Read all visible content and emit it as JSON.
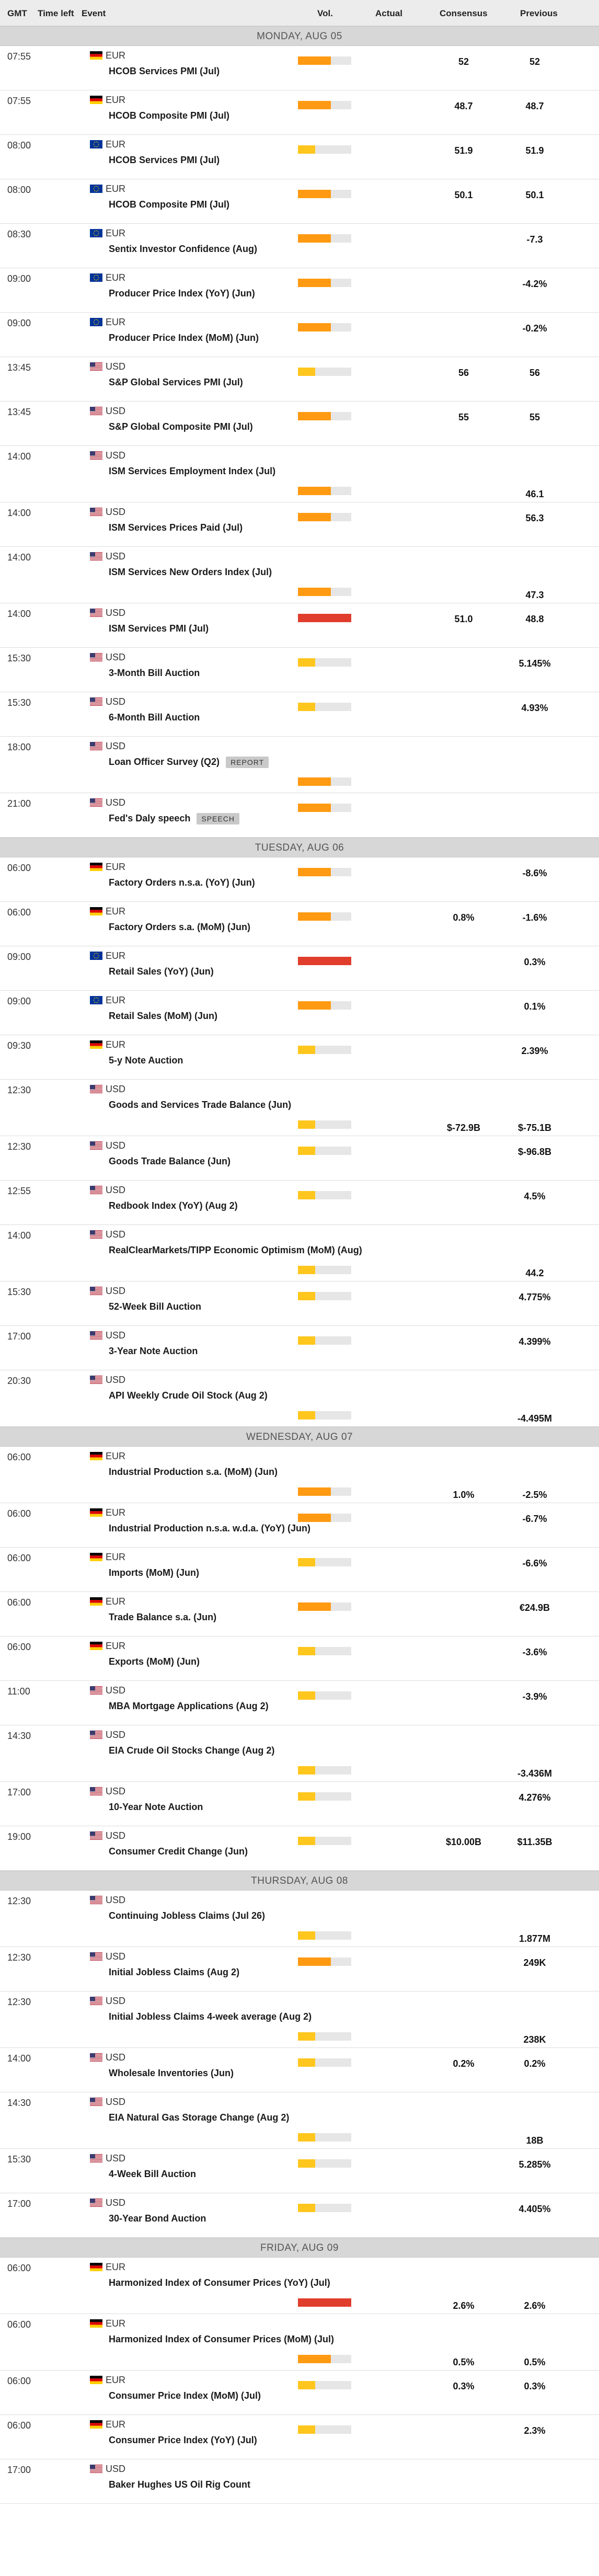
{
  "header": {
    "gmt": "GMT",
    "time_left": "Time left",
    "event": "Event",
    "vol": "Vol.",
    "actual": "Actual",
    "consensus": "Consensus",
    "previous": "Previous"
  },
  "colors": {
    "low": "#ffc61e",
    "medium": "#ff9a12",
    "high": "#e03d2c",
    "track": "#e6e6e6"
  },
  "days": [
    {
      "label": "MONDAY, AUG 05",
      "events": [
        {
          "time": "07:55",
          "flag": "de",
          "currency": "EUR",
          "name": "HCOB Services PMI (Jul)",
          "vol": "medium",
          "consensus": "52",
          "previous": "52"
        },
        {
          "time": "07:55",
          "flag": "de",
          "currency": "EUR",
          "name": "HCOB Composite PMI (Jul)",
          "vol": "medium",
          "consensus": "48.7",
          "previous": "48.7"
        },
        {
          "time": "08:00",
          "flag": "eu",
          "currency": "EUR",
          "name": "HCOB Services PMI (Jul)",
          "vol": "low",
          "consensus": "51.9",
          "previous": "51.9"
        },
        {
          "time": "08:00",
          "flag": "eu",
          "currency": "EUR",
          "name": "HCOB Composite PMI (Jul)",
          "vol": "medium",
          "consensus": "50.1",
          "previous": "50.1"
        },
        {
          "time": "08:30",
          "flag": "eu",
          "currency": "EUR",
          "name": "Sentix Investor Confidence (Aug)",
          "vol": "medium",
          "consensus": "",
          "previous": "-7.3"
        },
        {
          "time": "09:00",
          "flag": "eu",
          "currency": "EUR",
          "name": "Producer Price Index (YoY) (Jun)",
          "vol": "medium",
          "consensus": "",
          "previous": "-4.2%"
        },
        {
          "time": "09:00",
          "flag": "eu",
          "currency": "EUR",
          "name": "Producer Price Index (MoM) (Jun)",
          "vol": "medium",
          "consensus": "",
          "previous": "-0.2%"
        },
        {
          "time": "13:45",
          "flag": "us",
          "currency": "USD",
          "name": "S&P Global Services PMI (Jul)",
          "vol": "low",
          "consensus": "56",
          "previous": "56"
        },
        {
          "time": "13:45",
          "flag": "us",
          "currency": "USD",
          "name": "S&P Global Composite PMI (Jul)",
          "vol": "medium",
          "consensus": "55",
          "previous": "55"
        },
        {
          "time": "14:00",
          "flag": "us",
          "currency": "USD",
          "name": "ISM Services Employment Index (Jul)",
          "vol": "medium",
          "consensus": "",
          "previous": "46.1",
          "tall": true
        },
        {
          "time": "14:00",
          "flag": "us",
          "currency": "USD",
          "name": "ISM Services Prices Paid (Jul)",
          "vol": "medium",
          "consensus": "",
          "previous": "56.3"
        },
        {
          "time": "14:00",
          "flag": "us",
          "currency": "USD",
          "name": "ISM Services New Orders Index (Jul)",
          "vol": "medium",
          "consensus": "",
          "previous": "47.3",
          "tall": true
        },
        {
          "time": "14:00",
          "flag": "us",
          "currency": "USD",
          "name": "ISM Services PMI (Jul)",
          "vol": "high",
          "consensus": "51.0",
          "previous": "48.8"
        },
        {
          "time": "15:30",
          "flag": "us",
          "currency": "USD",
          "name": "3-Month Bill Auction",
          "vol": "low",
          "consensus": "",
          "previous": "5.145%"
        },
        {
          "time": "15:30",
          "flag": "us",
          "currency": "USD",
          "name": "6-Month Bill Auction",
          "vol": "low",
          "consensus": "",
          "previous": "4.93%"
        },
        {
          "time": "18:00",
          "flag": "us",
          "currency": "USD",
          "name": "Loan Officer Survey (Q2)",
          "tag": "REPORT",
          "vol": "medium",
          "consensus": "",
          "previous": "",
          "tall": true
        },
        {
          "time": "21:00",
          "flag": "us",
          "currency": "USD",
          "name": "Fed's Daly speech",
          "tag": "SPEECH",
          "vol": "medium",
          "consensus": "",
          "previous": ""
        }
      ]
    },
    {
      "label": "TUESDAY, AUG 06",
      "events": [
        {
          "time": "06:00",
          "flag": "de",
          "currency": "EUR",
          "name": "Factory Orders n.s.a. (YoY) (Jun)",
          "vol": "medium",
          "consensus": "",
          "previous": "-8.6%"
        },
        {
          "time": "06:00",
          "flag": "de",
          "currency": "EUR",
          "name": "Factory Orders s.a. (MoM) (Jun)",
          "vol": "medium",
          "consensus": "0.8%",
          "previous": "-1.6%"
        },
        {
          "time": "09:00",
          "flag": "eu",
          "currency": "EUR",
          "name": "Retail Sales (YoY) (Jun)",
          "vol": "high",
          "consensus": "",
          "previous": "0.3%"
        },
        {
          "time": "09:00",
          "flag": "eu",
          "currency": "EUR",
          "name": "Retail Sales (MoM) (Jun)",
          "vol": "medium",
          "consensus": "",
          "previous": "0.1%"
        },
        {
          "time": "09:30",
          "flag": "de",
          "currency": "EUR",
          "name": "5-y Note Auction",
          "vol": "low",
          "consensus": "",
          "previous": "2.39%"
        },
        {
          "time": "12:30",
          "flag": "us",
          "currency": "USD",
          "name": "Goods and Services Trade Balance (Jun)",
          "vol": "low",
          "consensus": "$-72.9B",
          "previous": "$-75.1B",
          "tall": true
        },
        {
          "time": "12:30",
          "flag": "us",
          "currency": "USD",
          "name": "Goods Trade Balance (Jun)",
          "vol": "low",
          "consensus": "",
          "previous": "$-96.8B"
        },
        {
          "time": "12:55",
          "flag": "us",
          "currency": "USD",
          "name": "Redbook Index (YoY) (Aug 2)",
          "vol": "low",
          "consensus": "",
          "previous": "4.5%"
        },
        {
          "time": "14:00",
          "flag": "us",
          "currency": "USD",
          "name": "RealClearMarkets/TIPP Economic Optimism (MoM) (Aug)",
          "vol": "low",
          "consensus": "",
          "previous": "44.2",
          "tall": true
        },
        {
          "time": "15:30",
          "flag": "us",
          "currency": "USD",
          "name": "52-Week Bill Auction",
          "vol": "low",
          "consensus": "",
          "previous": "4.775%"
        },
        {
          "time": "17:00",
          "flag": "us",
          "currency": "USD",
          "name": "3-Year Note Auction",
          "vol": "low",
          "consensus": "",
          "previous": "4.399%"
        },
        {
          "time": "20:30",
          "flag": "us",
          "currency": "USD",
          "name": "API Weekly Crude Oil Stock (Aug 2)",
          "vol": "low",
          "consensus": "",
          "previous": "-4.495M",
          "tall": true
        }
      ]
    },
    {
      "label": "WEDNESDAY, AUG 07",
      "events": [
        {
          "time": "06:00",
          "flag": "de",
          "currency": "EUR",
          "name": "Industrial Production s.a. (MoM) (Jun)",
          "vol": "medium",
          "consensus": "1.0%",
          "previous": "-2.5%",
          "tall": true
        },
        {
          "time": "06:00",
          "flag": "de",
          "currency": "EUR",
          "name": "Industrial Production n.s.a. w.d.a. (YoY) (Jun)",
          "vol": "medium",
          "consensus": "",
          "previous": "-6.7%"
        },
        {
          "time": "06:00",
          "flag": "de",
          "currency": "EUR",
          "name": "Imports (MoM) (Jun)",
          "vol": "low",
          "consensus": "",
          "previous": "-6.6%"
        },
        {
          "time": "06:00",
          "flag": "de",
          "currency": "EUR",
          "name": "Trade Balance s.a. (Jun)",
          "vol": "medium",
          "consensus": "",
          "previous": "€24.9B"
        },
        {
          "time": "06:00",
          "flag": "de",
          "currency": "EUR",
          "name": "Exports (MoM) (Jun)",
          "vol": "low",
          "consensus": "",
          "previous": "-3.6%"
        },
        {
          "time": "11:00",
          "flag": "us",
          "currency": "USD",
          "name": "MBA Mortgage Applications (Aug 2)",
          "vol": "low",
          "consensus": "",
          "previous": "-3.9%"
        },
        {
          "time": "14:30",
          "flag": "us",
          "currency": "USD",
          "name": "EIA Crude Oil Stocks Change (Aug 2)",
          "vol": "low",
          "consensus": "",
          "previous": "-3.436M",
          "tall": true
        },
        {
          "time": "17:00",
          "flag": "us",
          "currency": "USD",
          "name": "10-Year Note Auction",
          "vol": "low",
          "consensus": "",
          "previous": "4.276%"
        },
        {
          "time": "19:00",
          "flag": "us",
          "currency": "USD",
          "name": "Consumer Credit Change (Jun)",
          "vol": "low",
          "consensus": "$10.00B",
          "previous": "$11.35B"
        }
      ]
    },
    {
      "label": "THURSDAY, AUG 08",
      "events": [
        {
          "time": "12:30",
          "flag": "us",
          "currency": "USD",
          "name": "Continuing Jobless Claims (Jul 26)",
          "vol": "low",
          "consensus": "",
          "previous": "1.877M",
          "tall": true
        },
        {
          "time": "12:30",
          "flag": "us",
          "currency": "USD",
          "name": "Initial Jobless Claims (Aug 2)",
          "vol": "medium",
          "consensus": "",
          "previous": "249K"
        },
        {
          "time": "12:30",
          "flag": "us",
          "currency": "USD",
          "name": "Initial Jobless Claims 4-week average (Aug 2)",
          "vol": "low",
          "consensus": "",
          "previous": "238K",
          "tall": true
        },
        {
          "time": "14:00",
          "flag": "us",
          "currency": "USD",
          "name": "Wholesale Inventories (Jun)",
          "vol": "low",
          "consensus": "0.2%",
          "previous": "0.2%"
        },
        {
          "time": "14:30",
          "flag": "us",
          "currency": "USD",
          "name": "EIA Natural Gas Storage Change (Aug 2)",
          "vol": "low",
          "consensus": "",
          "previous": "18B",
          "tall": true
        },
        {
          "time": "15:30",
          "flag": "us",
          "currency": "USD",
          "name": "4-Week Bill Auction",
          "vol": "low",
          "consensus": "",
          "previous": "5.285%"
        },
        {
          "time": "17:00",
          "flag": "us",
          "currency": "USD",
          "name": "30-Year Bond Auction",
          "vol": "low",
          "consensus": "",
          "previous": "4.405%"
        }
      ]
    },
    {
      "label": "FRIDAY, AUG 09",
      "events": [
        {
          "time": "06:00",
          "flag": "de",
          "currency": "EUR",
          "name": "Harmonized Index of Consumer Prices (YoY) (Jul)",
          "vol": "high",
          "consensus": "2.6%",
          "previous": "2.6%",
          "tall": true
        },
        {
          "time": "06:00",
          "flag": "de",
          "currency": "EUR",
          "name": "Harmonized Index of Consumer Prices (MoM) (Jul)",
          "vol": "medium",
          "consensus": "0.5%",
          "previous": "0.5%",
          "tall": true
        },
        {
          "time": "06:00",
          "flag": "de",
          "currency": "EUR",
          "name": "Consumer Price Index (MoM) (Jul)",
          "vol": "low",
          "consensus": "0.3%",
          "previous": "0.3%"
        },
        {
          "time": "06:00",
          "flag": "de",
          "currency": "EUR",
          "name": "Consumer Price Index (YoY) (Jul)",
          "vol": "low",
          "consensus": "",
          "previous": "2.3%"
        },
        {
          "time": "17:00",
          "flag": "us",
          "currency": "USD",
          "name": "Baker Hughes US Oil Rig Count",
          "vol": "",
          "consensus": "",
          "previous": ""
        }
      ]
    }
  ]
}
